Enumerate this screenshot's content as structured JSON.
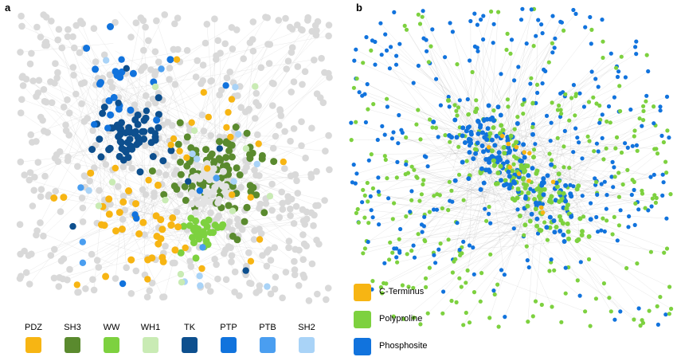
{
  "panels": {
    "a": {
      "label": "a"
    },
    "b": {
      "label": "b"
    }
  },
  "legend_a": [
    {
      "label": "PDZ",
      "color": "#f7b513"
    },
    {
      "label": "SH3",
      "color": "#5a8a2e"
    },
    {
      "label": "WW",
      "color": "#7dd13f"
    },
    {
      "label": "WH1",
      "color": "#c9ebb4"
    },
    {
      "label": "TK",
      "color": "#0d4f8e"
    },
    {
      "label": "PTP",
      "color": "#1173dd"
    },
    {
      "label": "PTB",
      "color": "#4a9ef0"
    },
    {
      "label": "SH2",
      "color": "#a9d3f7"
    }
  ],
  "legend_b": [
    {
      "label": "C-Terminus",
      "color": "#f7b513"
    },
    {
      "label": "Polyproline",
      "color": "#7dd13f"
    },
    {
      "label": "Phosphosite",
      "color": "#1173dd"
    }
  ],
  "colors": {
    "unassigned_node": "#d9d9d9",
    "edge": "#bfbfbf",
    "edge_dark": "#555555"
  }
}
